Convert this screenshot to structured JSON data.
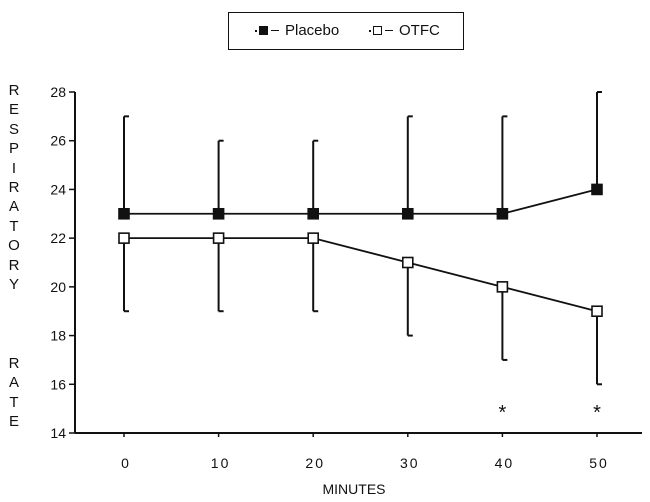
{
  "chart_data": {
    "type": "line",
    "x": [
      0,
      10,
      20,
      30,
      40,
      50
    ],
    "xlabel": "MINUTES",
    "ylabel": "RESPIRATORY RATE",
    "ylabel_words": [
      "RESPIRATORY",
      "RATE"
    ],
    "ylim": [
      14,
      28
    ],
    "yticks": [
      14,
      16,
      18,
      20,
      22,
      24,
      26,
      28
    ],
    "xticks": [
      0,
      10,
      20,
      30,
      40,
      50
    ],
    "grid": false,
    "legend": "top-center",
    "series": [
      {
        "name": "Placebo",
        "marker": "filled-square",
        "values": [
          23,
          23,
          23,
          23,
          23,
          24
        ],
        "error_upper": [
          27,
          26,
          26,
          27,
          27,
          28
        ]
      },
      {
        "name": "OTFC",
        "marker": "open-square",
        "values": [
          22,
          22,
          22,
          21,
          20,
          19
        ],
        "error_lower": [
          19,
          19,
          19,
          18,
          17,
          16
        ]
      }
    ],
    "annotations": [
      {
        "x": 40,
        "text": "*"
      },
      {
        "x": 50,
        "text": "*"
      }
    ]
  },
  "colors": {
    "ink": "#111111",
    "background": "#ffffff"
  }
}
